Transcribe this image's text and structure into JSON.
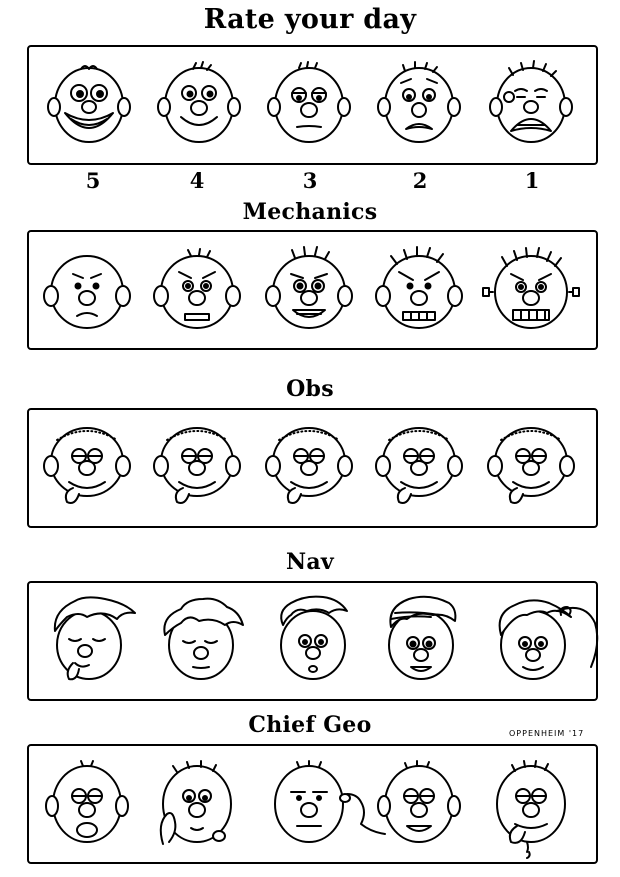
{
  "title": "Rate your day",
  "scale": [
    "5",
    "4",
    "3",
    "2",
    "1"
  ],
  "sections": [
    {
      "title": "Mechanics"
    },
    {
      "title": "Obs"
    },
    {
      "title": "Nav"
    },
    {
      "title": "Chief Geo"
    }
  ],
  "signature": "OPPENHEIM '17"
}
